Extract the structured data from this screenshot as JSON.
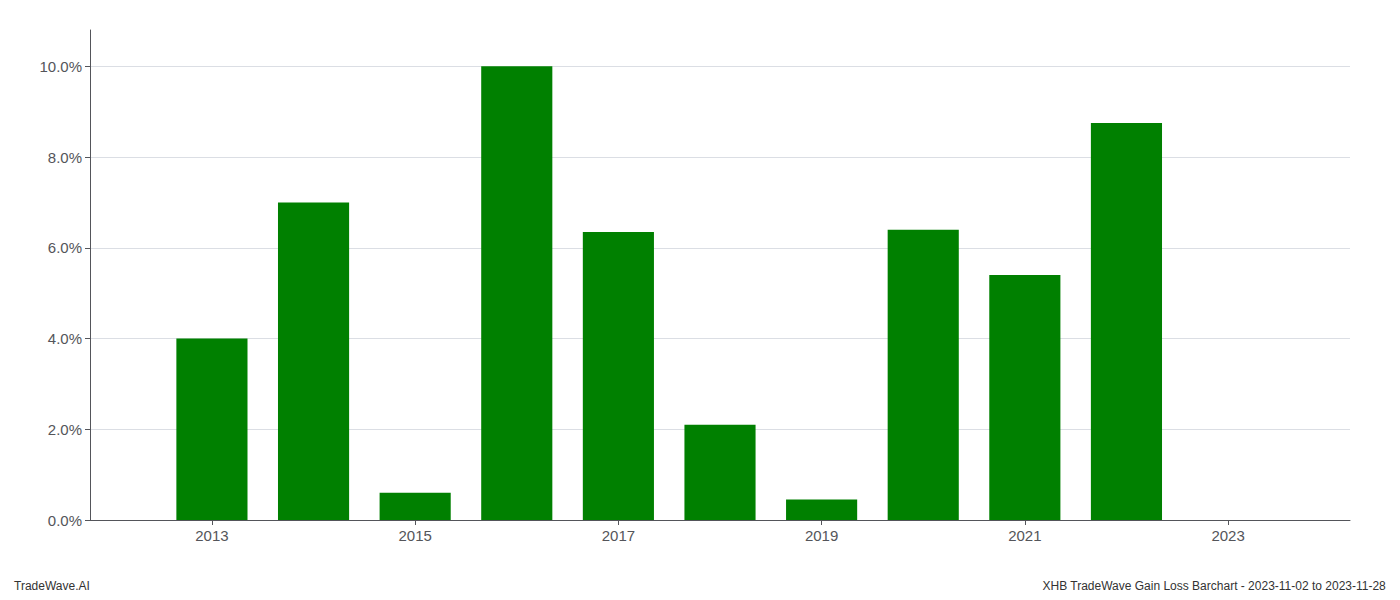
{
  "chart_data": {
    "type": "bar",
    "x": [
      2013,
      2014,
      2015,
      2016,
      2017,
      2018,
      2019,
      2020,
      2021,
      2022
    ],
    "values": [
      0.04,
      0.07,
      0.006,
      0.1,
      0.0635,
      0.021,
      0.0045,
      0.064,
      0.054,
      0.0875
    ],
    "color": "#008000",
    "xlim": [
      2011.8,
      2024.2
    ],
    "xticks": [
      2013,
      2015,
      2017,
      2019,
      2021,
      2023
    ],
    "ylim": [
      0,
      0.108
    ],
    "yticks": [
      {
        "value": 0.0,
        "label": "0.0%"
      },
      {
        "value": 0.02,
        "label": "2.0%"
      },
      {
        "value": 0.04,
        "label": "4.0%"
      },
      {
        "value": 0.06,
        "label": "6.0%"
      },
      {
        "value": 0.08,
        "label": "8.0%"
      },
      {
        "value": 0.1,
        "label": "10.0%"
      }
    ],
    "grid": true,
    "annotations": [
      "TradeWave.AI",
      "XHB TradeWave Gain Loss Barchart - 2023-11-02 to 2023-11-28"
    ]
  }
}
